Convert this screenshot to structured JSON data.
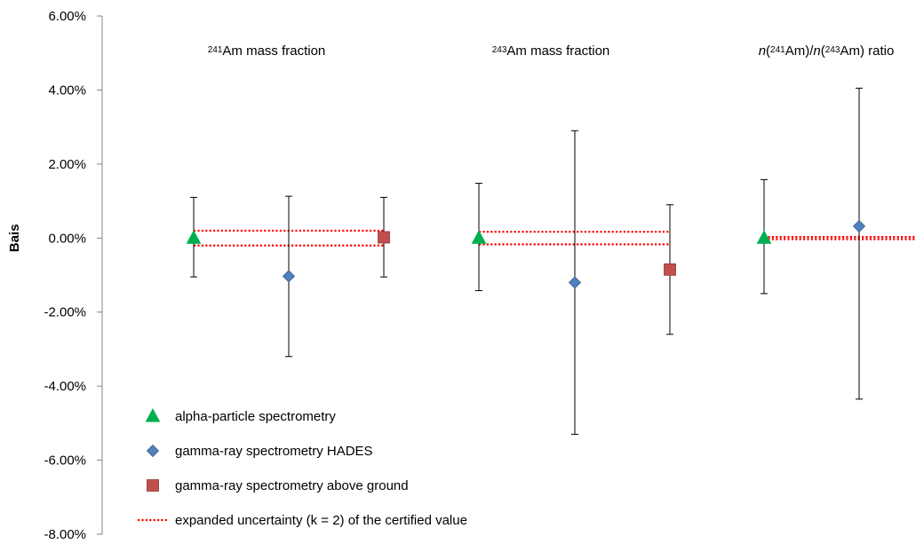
{
  "chart_data": {
    "type": "scatter",
    "ylabel": "Bais",
    "ylim": [
      -8,
      6
    ],
    "yticks": [
      6,
      4,
      2,
      0,
      -2,
      -4,
      -6,
      -8
    ],
    "ytick_labels": [
      "6.00%",
      "4.00%",
      "2.00%",
      "0.00%",
      "-2.00%",
      "-4.00%",
      "-6.00%",
      "-8.00%"
    ],
    "grid": false,
    "legend_position": "bottom-left",
    "groups": [
      {
        "label_parts": [
          {
            "t": "241",
            "sup": true
          },
          {
            "t": "Am mass fraction"
          }
        ],
        "uncertainty_band": [
          -0.2,
          0.2
        ],
        "points": [
          {
            "series": 0,
            "y": 0.0,
            "err_lo": -1.05,
            "err_hi": 1.1
          },
          {
            "series": 1,
            "y": -1.03,
            "err_lo": -3.2,
            "err_hi": 1.13
          },
          {
            "series": 2,
            "y": 0.02,
            "err_lo": -1.05,
            "err_hi": 1.1
          }
        ]
      },
      {
        "label_parts": [
          {
            "t": "243",
            "sup": true
          },
          {
            "t": "Am mass fraction"
          }
        ],
        "uncertainty_band": [
          -0.17,
          0.17
        ],
        "points": [
          {
            "series": 0,
            "y": 0.0,
            "err_lo": -1.42,
            "err_hi": 1.48
          },
          {
            "series": 1,
            "y": -1.2,
            "err_lo": -5.3,
            "err_hi": 2.9
          },
          {
            "series": 2,
            "y": -0.85,
            "err_lo": -2.6,
            "err_hi": 0.9
          }
        ]
      },
      {
        "label_parts": [
          {
            "t": "n",
            "italic": true
          },
          {
            "t": "("
          },
          {
            "t": "241",
            "sup": true
          },
          {
            "t": "Am)/"
          },
          {
            "t": "n",
            "italic": true
          },
          {
            "t": "("
          },
          {
            "t": "243",
            "sup": true
          },
          {
            "t": "Am) ratio"
          }
        ],
        "uncertainty_band": [
          -0.03,
          0.03
        ],
        "points": [
          {
            "series": 0,
            "y": 0.0,
            "err_lo": -1.5,
            "err_hi": 1.58
          },
          {
            "series": 1,
            "y": 0.32,
            "err_lo": -4.35,
            "err_hi": 4.05
          }
        ]
      }
    ],
    "series": [
      {
        "name": "alpha-particle spectrometry",
        "marker": "triangle",
        "color": "#00b050"
      },
      {
        "name": "gamma-ray spectrometry HADES",
        "marker": "diamond",
        "color": "#4f81bd"
      },
      {
        "name": "gamma-ray spectrometry above ground",
        "marker": "square",
        "color": "#c0504d"
      }
    ],
    "uncertainty_series": {
      "name": "expanded uncertainty (k = 2) of the certified value",
      "color": "#ff0000"
    }
  }
}
